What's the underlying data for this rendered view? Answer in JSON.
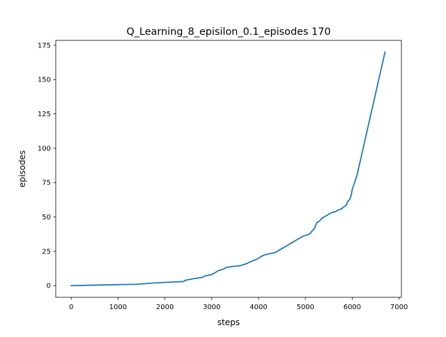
{
  "chart_data": {
    "type": "line",
    "title": "Q_Learning_8_episilon_0.1_episodes 170",
    "xlabel": "steps",
    "ylabel": "episodes",
    "xlim": [
      -330,
      7050
    ],
    "ylim": [
      -8.5,
      178.5
    ],
    "xticks": [
      0,
      1000,
      2000,
      3000,
      4000,
      5000,
      6000,
      7000
    ],
    "yticks": [
      0,
      25,
      50,
      75,
      100,
      125,
      150,
      175
    ],
    "grid": false,
    "legend": "none",
    "series": [
      {
        "color": "#1f77b4",
        "x": [
          0,
          1400,
          1800,
          2400,
          2450,
          2600,
          2800,
          2850,
          3000,
          3050,
          3100,
          3150,
          3250,
          3300,
          3350,
          3450,
          3550,
          3620,
          3650,
          3750,
          3800,
          3870,
          3950,
          4000,
          4050,
          4100,
          4200,
          4350,
          4400,
          4450,
          4500,
          4550,
          4600,
          4650,
          4700,
          4750,
          4800,
          4850,
          4900,
          4950,
          5050,
          5100,
          5150,
          5200,
          5220,
          5250,
          5300,
          5330,
          5350,
          5400,
          5450,
          5500,
          5550,
          5600,
          5650,
          5700,
          5780,
          5800,
          5850,
          5880,
          5900,
          5950,
          5980,
          6000,
          6050,
          6100,
          6700
        ],
        "y": [
          0,
          1,
          2,
          3,
          4,
          5,
          6,
          7,
          8,
          9,
          10,
          11,
          12,
          13,
          13.5,
          14,
          14.3,
          14.6,
          15,
          16,
          17,
          18,
          19,
          20,
          21,
          22,
          23,
          24,
          25,
          26,
          27,
          28,
          29,
          30,
          31,
          32,
          33,
          34,
          35,
          36,
          37,
          38,
          40,
          42,
          44,
          46,
          47,
          48,
          49,
          50,
          51,
          52,
          53,
          53.5,
          54,
          55,
          56,
          57,
          58,
          59,
          61,
          63,
          66,
          70,
          75,
          80,
          170
        ]
      }
    ]
  }
}
